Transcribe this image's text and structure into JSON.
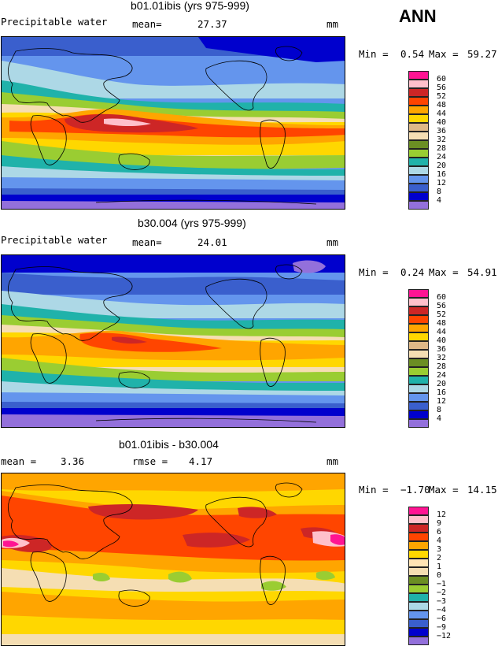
{
  "header": {
    "season_label": "ANN"
  },
  "colors": {
    "abs_palette": [
      "#9370db",
      "#0000cd",
      "#3a5fcd",
      "#6495ed",
      "#add8e6",
      "#20b2aa",
      "#9acd32",
      "#6b8e23",
      "#f5deb3",
      "#deb887",
      "#ffd700",
      "#ffa500",
      "#ff4500",
      "#cd2626",
      "#ffc0cb",
      "#ff1493"
    ],
    "diff_palette": [
      "#9370db",
      "#0000cd",
      "#3a5fcd",
      "#6495ed",
      "#add8e6",
      "#20b2aa",
      "#9acd32",
      "#6b8e23",
      "#f5deb3",
      "#ffe4b5",
      "#ffd700",
      "#ffa500",
      "#ff4500",
      "#cd2626",
      "#ffc0cb",
      "#ff1493"
    ]
  },
  "panels": [
    {
      "title": "b01.01ibis (yrs 975-999)",
      "variable": "Precipitable water",
      "stat1_label": "mean=",
      "stat1_value": "27.37",
      "units": "mm",
      "min_label": "Min =",
      "min_value": "0.54",
      "max_label": "Max =",
      "max_value": "59.27",
      "legend_levels": [
        "60",
        "56",
        "52",
        "48",
        "44",
        "40",
        "36",
        "32",
        "28",
        "24",
        "20",
        "16",
        "12",
        "8",
        "4"
      ]
    },
    {
      "title": "b30.004 (yrs 975-999)",
      "variable": "Precipitable water",
      "stat1_label": "mean=",
      "stat1_value": "24.01",
      "units": "mm",
      "min_label": "Min =",
      "min_value": "0.24",
      "max_label": "Max =",
      "max_value": "54.91",
      "legend_levels": [
        "60",
        "56",
        "52",
        "48",
        "44",
        "40",
        "36",
        "32",
        "28",
        "24",
        "20",
        "16",
        "12",
        "8",
        "4"
      ]
    },
    {
      "title": "b01.01ibis - b30.004",
      "stat1_label": "mean =",
      "stat1_value": "3.36",
      "stat2_label": "rmse =",
      "stat2_value": "4.17",
      "units": "mm",
      "min_label": "Min =",
      "min_value": "−1.70",
      "max_label": "Max =",
      "max_value": "14.15",
      "legend_levels": [
        "12",
        "9",
        "6",
        "4",
        "3",
        "2",
        "1",
        "0",
        "−1",
        "−2",
        "−3",
        "−4",
        "−6",
        "−9",
        "−12"
      ]
    }
  ]
}
